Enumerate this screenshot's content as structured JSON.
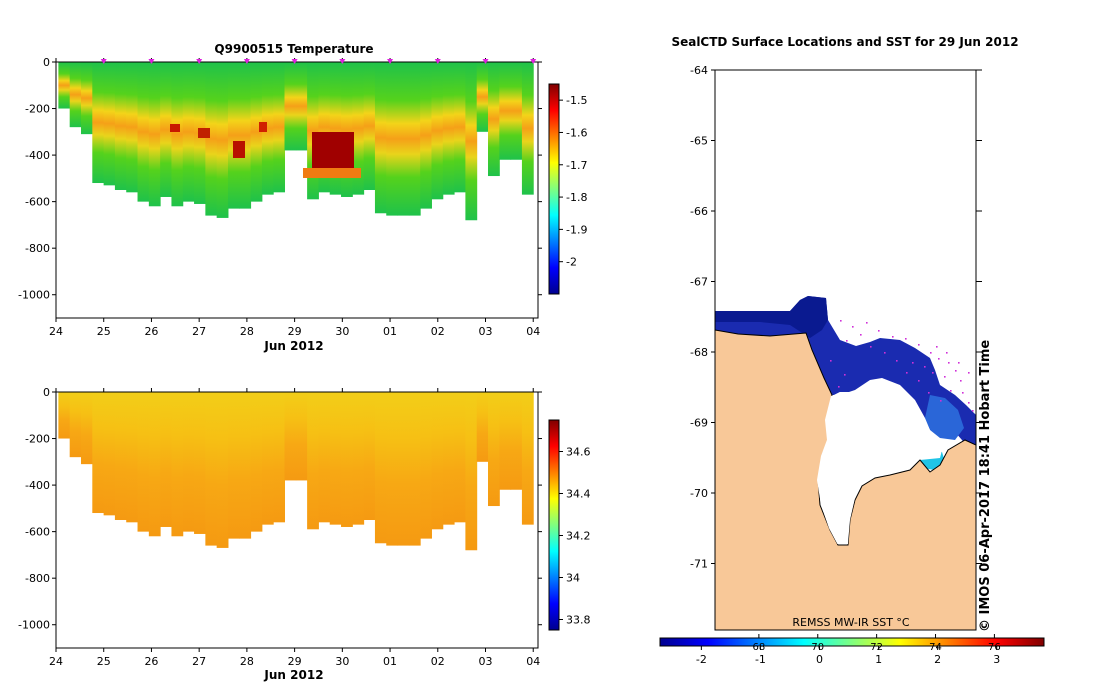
{
  "chart_data": [
    {
      "type": "heatmap",
      "title": "Q9900515  Temperature",
      "xlabel": "Jun 2012",
      "ylabel": "",
      "x_tick_labels": [
        "24",
        "25",
        "26",
        "27",
        "28",
        "29",
        "30",
        "01",
        "02",
        "03",
        "04"
      ],
      "y_tick_labels": [
        "0",
        "-200",
        "-400",
        "-600",
        "-800",
        "-1000"
      ],
      "ylim": [
        -1100,
        0
      ],
      "colorbar_ticks": [
        "-1.5",
        "-1.6",
        "-1.7",
        "-1.8",
        "-1.9",
        "-2"
      ],
      "colorbar_range": [
        -2.1,
        -1.45
      ],
      "profile_day_markers": [
        25,
        26,
        27,
        28,
        29,
        30,
        31,
        32,
        33,
        34
      ],
      "profiles_max_depth_m": [
        200,
        280,
        310,
        520,
        530,
        550,
        560,
        600,
        620,
        580,
        620,
        600,
        610,
        660,
        670,
        630,
        630,
        600,
        570,
        560,
        380,
        380,
        590,
        560,
        570,
        580,
        570,
        550,
        650,
        660,
        660,
        660,
        630,
        590,
        570,
        560,
        680,
        300,
        490,
        420,
        420,
        570
      ]
    },
    {
      "type": "heatmap",
      "title": "",
      "xlabel": "Jun 2012",
      "ylabel": "",
      "x_tick_labels": [
        "24",
        "25",
        "26",
        "27",
        "28",
        "29",
        "30",
        "01",
        "02",
        "03",
        "04"
      ],
      "y_tick_labels": [
        "0",
        "-200",
        "-400",
        "-600",
        "-800",
        "-1000"
      ],
      "ylim": [
        -1100,
        0
      ],
      "colorbar_ticks": [
        "34.6",
        "34.4",
        "34.2",
        "34",
        "33.8"
      ],
      "colorbar_range": [
        33.75,
        34.75
      ]
    },
    {
      "type": "map",
      "title": "SealCTD Surface Locations and SST for 29 Jun 2012",
      "y_tick_labels": [
        "-64",
        "-65",
        "-66",
        "-67",
        "-68",
        "-69",
        "-70",
        "-71"
      ],
      "colorbar_label": "REMSS MW-IR SST °C",
      "colorbar_ticks_celsius": [
        "-2",
        "-1",
        "0",
        "1",
        "2",
        "3"
      ],
      "colorbar_ticks_fahrenheit": [
        "68",
        "70",
        "72",
        "74",
        "76"
      ],
      "side_caption": "© IMOS 06-Apr-2017 18:41 Hobart Time"
    }
  ]
}
